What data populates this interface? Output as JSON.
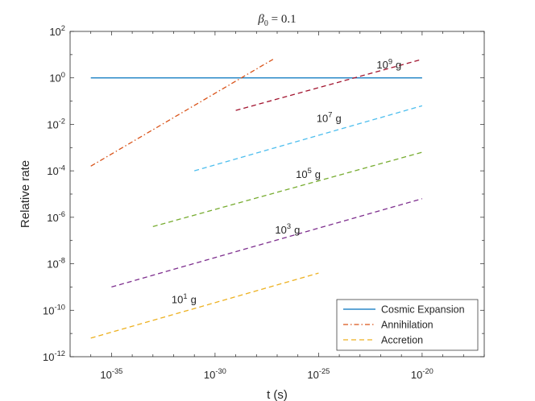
{
  "chart_data": {
    "type": "line",
    "title": {
      "symbol": "β",
      "sub": "0",
      "rest": " = 0.1"
    },
    "xlabel": "t (s)",
    "ylabel": "Relative rate",
    "x_scale": "log",
    "y_scale": "log",
    "xlim_exp": [
      -37,
      -17
    ],
    "ylim_exp": [
      -12,
      2
    ],
    "x_ticks": [
      {
        "exp": -35,
        "base": "10",
        "sup": "-35"
      },
      {
        "exp": -30,
        "base": "10",
        "sup": "-30"
      },
      {
        "exp": -25,
        "base": "10",
        "sup": "-25"
      },
      {
        "exp": -20,
        "base": "10",
        "sup": "-20"
      }
    ],
    "y_ticks": [
      {
        "exp": 2,
        "base": "10",
        "sup": "2"
      },
      {
        "exp": 0,
        "base": "10",
        "sup": "0"
      },
      {
        "exp": -2,
        "base": "10",
        "sup": "-2"
      },
      {
        "exp": -4,
        "base": "10",
        "sup": "-4"
      },
      {
        "exp": -6,
        "base": "10",
        "sup": "-6"
      },
      {
        "exp": -8,
        "base": "10",
        "sup": "-8"
      },
      {
        "exp": -10,
        "base": "10",
        "sup": "-10"
      },
      {
        "exp": -12,
        "base": "10",
        "sup": "-12"
      }
    ],
    "series": [
      {
        "name": "Cosmic Expansion",
        "color": "#0072BD",
        "dash": "solid",
        "x_exp": [
          -36,
          -20
        ],
        "y_exp": [
          0,
          0
        ]
      },
      {
        "name": "Annihilation",
        "color": "#D95319",
        "dash": "dashdot",
        "x_exp": [
          -36,
          -27.2
        ],
        "y_exp": [
          -3.8,
          0.8
        ]
      },
      {
        "name": "Accretion 10^1 g",
        "color": "#EDB120",
        "dash": "dashed",
        "x_exp": [
          -36,
          -25
        ],
        "y_exp": [
          -11.2,
          -8.4
        ]
      },
      {
        "name": "Accretion 10^3 g",
        "color": "#7E2F8E",
        "dash": "dashed",
        "x_exp": [
          -35,
          -20
        ],
        "y_exp": [
          -9.0,
          -5.2
        ]
      },
      {
        "name": "Accretion 10^5 g",
        "color": "#77AC30",
        "dash": "dashed",
        "x_exp": [
          -33,
          -20
        ],
        "y_exp": [
          -6.4,
          -3.2
        ]
      },
      {
        "name": "Accretion 10^7 g",
        "color": "#4DBEEE",
        "dash": "dashed",
        "x_exp": [
          -31,
          -20
        ],
        "y_exp": [
          -4.0,
          -1.2
        ]
      },
      {
        "name": "Accretion 10^9 g",
        "color": "#A2142F",
        "dash": "dashed",
        "x_exp": [
          -29,
          -20
        ],
        "y_exp": [
          -1.4,
          0.8
        ]
      }
    ],
    "annotations": [
      {
        "base": "10",
        "sup": "1",
        "unit": "g",
        "x_exp": -32.1,
        "y_exp": -9.7
      },
      {
        "base": "10",
        "sup": "3",
        "unit": "g",
        "x_exp": -27.1,
        "y_exp": -6.7
      },
      {
        "base": "10",
        "sup": "5",
        "unit": "g",
        "x_exp": -26.1,
        "y_exp": -4.3
      },
      {
        "base": "10",
        "sup": "7",
        "unit": "g",
        "x_exp": -25.1,
        "y_exp": -1.9
      },
      {
        "base": "10",
        "sup": "9",
        "unit": "g",
        "x_exp": -22.2,
        "y_exp": 0.4
      }
    ],
    "legend": {
      "position": "bottom-right",
      "entries": [
        {
          "label": "Cosmic Expansion",
          "color": "#0072BD",
          "dash": "solid"
        },
        {
          "label": "Annihilation",
          "color": "#D95319",
          "dash": "dashdot"
        },
        {
          "label": "Accretion",
          "color": "#EDB120",
          "dash": "dashed"
        }
      ]
    }
  }
}
